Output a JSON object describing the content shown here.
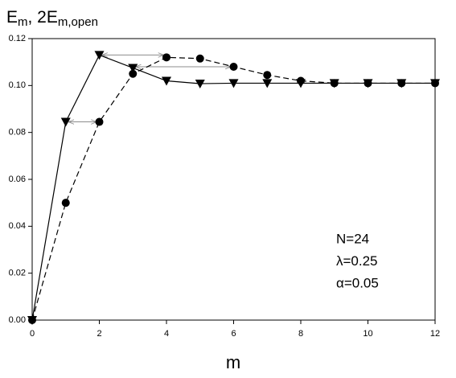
{
  "chart_data": {
    "type": "line",
    "ylabel": [
      {
        "text": "E"
      },
      {
        "sub": "m"
      },
      {
        "text": ", 2E"
      },
      {
        "sub": "m,open"
      }
    ],
    "xlabel": "m",
    "x": [
      0,
      1,
      2,
      3,
      4,
      5,
      6,
      7,
      8,
      9,
      10,
      11,
      12
    ],
    "series": [
      {
        "color": "#000000",
        "marker": "triangle",
        "dashed": false,
        "values": [
          0,
          0.0845,
          0.113,
          0.1075,
          0.102,
          0.1008,
          0.101,
          0.101,
          0.101,
          0.101,
          0.101,
          0.101,
          0.101
        ]
      },
      {
        "color": "#000000",
        "marker": "circle",
        "dashed": true,
        "values": [
          0,
          0.05,
          0.0845,
          0.105,
          0.112,
          0.1115,
          0.108,
          0.1045,
          0.102,
          0.101,
          0.101,
          0.101,
          0.101
        ]
      }
    ],
    "arrows": [
      {
        "x": [
          1,
          2
        ],
        "y": 0.0845
      },
      {
        "x": [
          2,
          4
        ],
        "y": 0.113
      },
      {
        "x": [
          3,
          6
        ],
        "y": 0.108
      }
    ],
    "arrow_color": "#8c8c8c",
    "annotations": [
      "N=24",
      "λ=0.25",
      "α=0.05"
    ],
    "xlim": [
      0,
      12
    ],
    "xticks": [
      0,
      2,
      4,
      6,
      8,
      10,
      12
    ],
    "ylim": [
      0,
      0.12
    ],
    "yticks": [
      {
        "value": 0,
        "label": "0.00"
      },
      0.02,
      0.04,
      0.06,
      0.08,
      {
        "value": 0.1,
        "label": "0.10"
      },
      0.12
    ]
  }
}
